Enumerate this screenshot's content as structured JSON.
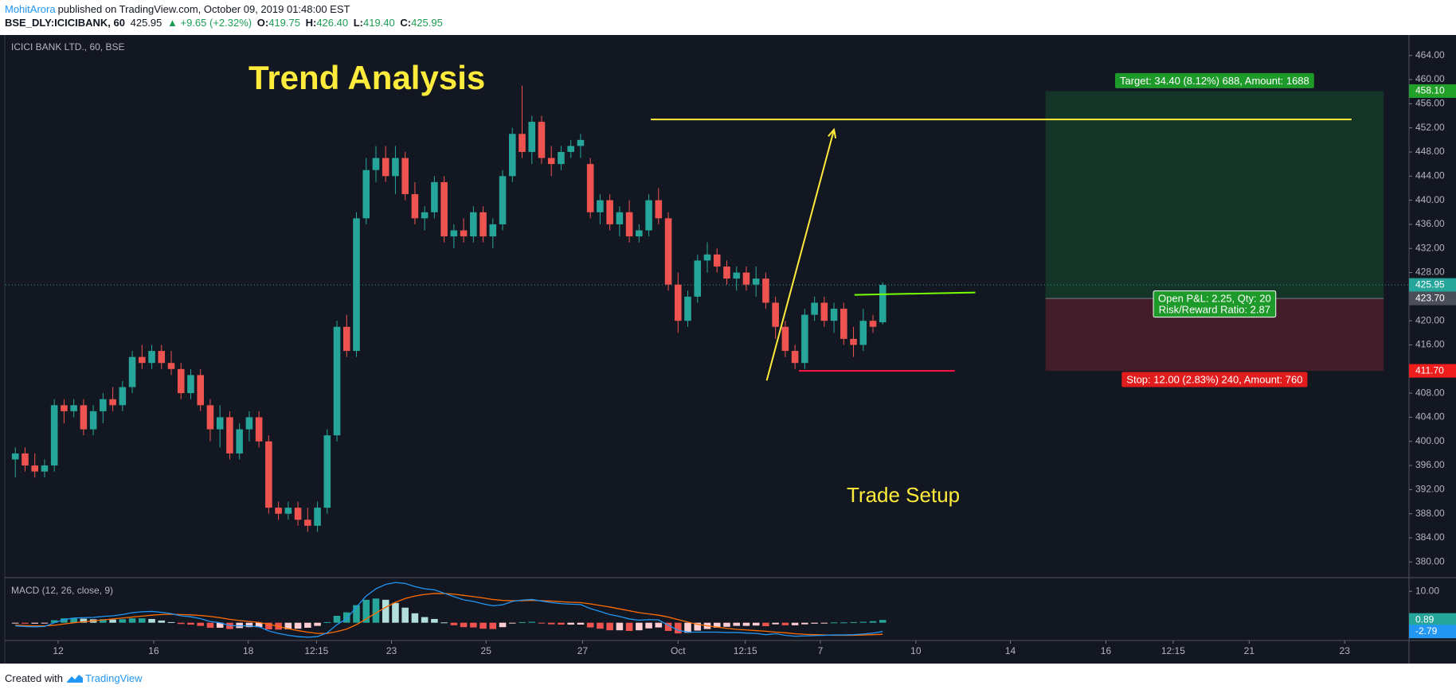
{
  "header": {
    "author": "MohitArora",
    "published": "published on TradingView.com, October 09, 2019 01:48:00 EST",
    "symbol": "BSE_DLY:ICICIBANK, 60",
    "last": "425.95",
    "arrow": "▲",
    "change": "+9.65 (+2.32%)",
    "o_label": "O:",
    "open": "419.75",
    "h_label": "H:",
    "high": "426.40",
    "l_label": "L:",
    "low": "419.40",
    "c_label": "C:",
    "close": "425.95"
  },
  "footer": {
    "created": "Created with",
    "brand": "TradingView"
  },
  "chart_data": [
    {
      "type": "candlestick",
      "title": "Trend Analysis",
      "subtitle": "ICICI BANK LTD., 60, BSE",
      "annotations": [
        "Trade Setup"
      ],
      "up_color": "#26a69a",
      "down_color": "#ef5350",
      "open": [
        397,
        398,
        396,
        395,
        396,
        406,
        405,
        406,
        402,
        405,
        407,
        406,
        409,
        414,
        413,
        415,
        413,
        412,
        408,
        411,
        406,
        402,
        404,
        398,
        402,
        404,
        400,
        389,
        388,
        389,
        387,
        386,
        389,
        401,
        419,
        415,
        437,
        445,
        447,
        444,
        447,
        441,
        437,
        438,
        443,
        434,
        435,
        434,
        438,
        434,
        436,
        444,
        451,
        448,
        453,
        447,
        446,
        448,
        449,
        446,
        438,
        440,
        436,
        438,
        434,
        435,
        440,
        437,
        426,
        420,
        424,
        430,
        431,
        429,
        427,
        428,
        426,
        427,
        423,
        419,
        415,
        413,
        421,
        423,
        420,
        422,
        417,
        416,
        420,
        419.75
      ],
      "high": [
        399,
        399,
        398,
        397,
        407,
        407,
        407,
        407,
        406,
        408,
        409,
        410,
        415,
        416,
        416,
        416,
        415,
        413,
        412,
        412,
        407,
        406,
        405,
        403,
        405,
        405,
        401,
        390,
        390,
        390,
        389,
        390,
        402,
        420,
        421,
        438,
        447,
        449,
        449,
        449,
        448,
        443,
        439,
        444,
        444,
        436,
        437,
        439,
        439,
        437,
        445,
        452,
        459,
        454,
        454,
        449,
        449,
        450,
        451,
        447,
        441,
        441,
        439,
        440,
        436,
        441,
        442,
        438,
        428,
        425,
        431,
        433,
        432,
        430,
        429,
        429,
        429,
        428,
        424,
        420,
        416,
        422,
        424,
        424,
        423,
        423,
        419,
        422,
        421,
        426.4
      ],
      "low": [
        394,
        395,
        394,
        394,
        395,
        403,
        404,
        401,
        401,
        403,
        405,
        405,
        408,
        412,
        412,
        412,
        411,
        407,
        407,
        405,
        400,
        399,
        397,
        397,
        400,
        399,
        388,
        387,
        387,
        386,
        385,
        385,
        388,
        400,
        414,
        414,
        436,
        443,
        443,
        441,
        440,
        436,
        435,
        437,
        433,
        432,
        433,
        433,
        433,
        432,
        435,
        443,
        447,
        446,
        446,
        444,
        445,
        447,
        447,
        437,
        436,
        435,
        434,
        433,
        433,
        434,
        436,
        425,
        418,
        419,
        423,
        428,
        428,
        426,
        425,
        425,
        424,
        422,
        417,
        414,
        412,
        412,
        420,
        419,
        418,
        416,
        414,
        415,
        418,
        419.4
      ],
      "close": [
        398,
        396,
        395,
        396,
        406,
        405,
        406,
        402,
        405,
        407,
        406,
        409,
        414,
        413,
        415,
        413,
        412,
        408,
        411,
        406,
        402,
        404,
        398,
        402,
        404,
        400,
        389,
        388,
        389,
        387,
        386,
        389,
        401,
        419,
        415,
        437,
        445,
        447,
        444,
        447,
        441,
        437,
        438,
        443,
        434,
        435,
        434,
        438,
        434,
        436,
        444,
        451,
        448,
        453,
        447,
        446,
        448,
        449,
        450,
        438,
        440,
        436,
        438,
        434,
        435,
        440,
        437,
        426,
        420,
        424,
        430,
        431,
        429,
        427,
        428,
        426,
        427,
        423,
        419,
        415,
        413,
        421,
        423,
        420,
        422,
        417,
        416,
        420,
        419,
        425.95
      ],
      "xlim": [
        -1,
        143
      ],
      "xticks": [
        {
          "value": 4.4,
          "label": "12"
        },
        {
          "value": 14.2,
          "label": "16"
        },
        {
          "value": 23.9,
          "label": "18"
        },
        {
          "value": 30.9,
          "label": "12:15"
        },
        {
          "value": 38.6,
          "label": "23"
        },
        {
          "value": 48.3,
          "label": "25"
        },
        {
          "value": 58.2,
          "label": "27"
        },
        {
          "value": 68,
          "label": "Oct"
        },
        {
          "value": 74.9,
          "label": "12:15"
        },
        {
          "value": 82.6,
          "label": "7"
        },
        {
          "value": 92.4,
          "label": "10"
        },
        {
          "value": 102.1,
          "label": "14"
        },
        {
          "value": 111.9,
          "label": "16"
        },
        {
          "value": 118.8,
          "label": "12:15"
        },
        {
          "value": 126.6,
          "label": "21"
        },
        {
          "value": 136.4,
          "label": "23"
        }
      ],
      "ylim": [
        377.4,
        467.4
      ],
      "yticks": [
        {
          "value": 380,
          "label": "380.00"
        },
        {
          "value": 384,
          "label": "384.00"
        },
        {
          "value": 388,
          "label": "388.00"
        },
        {
          "value": 392,
          "label": "392.00"
        },
        {
          "value": 396,
          "label": "396.00"
        },
        {
          "value": 400,
          "label": "400.00"
        },
        {
          "value": 404,
          "label": "404.00"
        },
        {
          "value": 408,
          "label": "408.00"
        },
        {
          "value": 412,
          "label": "412.00"
        },
        {
          "value": 416,
          "label": "416.00"
        },
        {
          "value": 420,
          "label": "420.00"
        },
        {
          "value": 424,
          "label": "424.00"
        },
        {
          "value": 428,
          "label": "428.00"
        },
        {
          "value": 432,
          "label": "432.00"
        },
        {
          "value": 436,
          "label": "436.00"
        },
        {
          "value": 440,
          "label": "440.00"
        },
        {
          "value": 444,
          "label": "444.00"
        },
        {
          "value": 448,
          "label": "448.00"
        },
        {
          "value": 452,
          "label": "452.00"
        },
        {
          "value": 456,
          "label": "456.00"
        },
        {
          "value": 460,
          "label": "460.00"
        },
        {
          "value": 464,
          "label": "464.00"
        }
      ],
      "drawings": [
        {
          "type": "line",
          "color": "#ffeb3b",
          "x": [
            65.2,
            137.1
          ],
          "y": [
            453.4,
            453.4
          ]
        },
        {
          "type": "arrow",
          "color": "#ffeb3b",
          "x": [
            77.1,
            84.0
          ],
          "y": [
            410.1,
            451.7
          ]
        },
        {
          "type": "line",
          "color": "#76ff03",
          "x": [
            86.1,
            98.5
          ],
          "y": [
            424.3,
            424.7
          ]
        },
        {
          "type": "line",
          "color": "#ff1744",
          "x": [
            80.4,
            96.4
          ],
          "y": [
            411.7,
            411.7
          ]
        }
      ],
      "position": {
        "x": [
          105.7,
          140.4
        ],
        "entry": 423.7,
        "target": 458.1,
        "stop": 411.7,
        "target_label": "Target: 34.40 (8.12%) 688, Amount: 1688",
        "pnl_label": "Open P&L: 2.25, Qty: 20",
        "rr_label": "Risk/Reward Ratio: 2.87",
        "stop_label": "Stop: 12.00 (2.83%) 240, Amount: 760"
      },
      "price_labels": [
        {
          "value": 458.1,
          "label": "458.10",
          "color": "#22a12a"
        },
        {
          "value": 425.95,
          "color": "#26a69a",
          "dotted": true
        },
        {
          "value": 423.7,
          "label": "423.70",
          "color": "#4a4e59"
        },
        {
          "value": 411.7,
          "label": "411.70",
          "color": "#f01d1d"
        }
      ]
    },
    {
      "type": "macd",
      "title": "MACD (12, 26, close, 9)",
      "histogram": {
        "colors": [
          "#26a69a",
          "#b2dfdb",
          "#ffcdd2",
          "#ef5350"
        ],
        "values": [
          -0.2,
          -0.3,
          -0.3,
          -0.2,
          0.8,
          1.4,
          1.5,
          1.3,
          1.1,
          1.1,
          1.0,
          1.1,
          1.4,
          1.4,
          1.2,
          0.7,
          0.2,
          -0.4,
          -0.6,
          -1.0,
          -1.6,
          -1.6,
          -2.0,
          -1.7,
          -1.4,
          -1.4,
          -2.1,
          -2.2,
          -2.1,
          -1.9,
          -1.6,
          -1.0,
          0.2,
          2.2,
          3.3,
          5.6,
          7.3,
          7.7,
          7.3,
          6.3,
          4.8,
          3.0,
          1.8,
          1.2,
          0.1,
          -0.8,
          -1.4,
          -1.5,
          -1.9,
          -2.0,
          -1.4,
          -0.2,
          0.2,
          0.3,
          -0.1,
          -0.5,
          -0.6,
          -0.6,
          -0.6,
          -1.5,
          -1.9,
          -2.4,
          -2.4,
          -2.6,
          -2.4,
          -1.8,
          -1.5,
          -2.6,
          -3.4,
          -3.2,
          -2.5,
          -2.0,
          -1.6,
          -1.3,
          -1.0,
          -1.0,
          -0.9,
          -1.1,
          -0.5,
          -0.8,
          -0.8,
          -0.5,
          -0.3,
          -0.1,
          0.1,
          0.1,
          0.2,
          0.3,
          0.5,
          0.89
        ]
      },
      "macd": {
        "color": "#2196f3",
        "values": [
          -1,
          -1.2,
          -1.3,
          -1.2,
          0,
          1,
          1.5,
          1.6,
          1.7,
          2,
          2.2,
          2.6,
          3.2,
          3.5,
          3.6,
          3.3,
          2.9,
          2.2,
          1.9,
          1.3,
          0.4,
          0,
          -0.9,
          -1,
          -1,
          -1.3,
          -2.6,
          -3.4,
          -4,
          -4.4,
          -4.6,
          -4.4,
          -3.2,
          -0.6,
          1.3,
          5,
          8.5,
          10.8,
          12.2,
          12.8,
          12.5,
          11.5,
          10.8,
          10.5,
          9.4,
          8.3,
          7.3,
          6.8,
          6,
          5.4,
          5.7,
          6.8,
          7.2,
          7.4,
          6.9,
          6.4,
          6.1,
          5.9,
          5.8,
          4.5,
          3.6,
          2.6,
          2,
          1.2,
          0.8,
          1,
          0.9,
          -0.8,
          -2.4,
          -3,
          -3,
          -3,
          -3,
          -3.1,
          -3.1,
          -3.3,
          -3.4,
          -3.8,
          -3.5,
          -4,
          -4.3,
          -4.2,
          -4.1,
          -4,
          -3.9,
          -3.9,
          -3.8,
          -3.6,
          -3.3,
          -2.79
        ]
      },
      "signal": {
        "color": "#ff6d00",
        "values": [
          -0.8,
          -0.9,
          -1,
          -1,
          -0.8,
          -0.4,
          0,
          0.3,
          0.6,
          0.9,
          1.2,
          1.5,
          1.8,
          2.1,
          2.4,
          2.6,
          2.7,
          2.6,
          2.5,
          2.3,
          2,
          1.6,
          1.1,
          0.7,
          0.4,
          0.1,
          -0.5,
          -1.2,
          -1.9,
          -2.5,
          -3,
          -3.4,
          -3.4,
          -2.8,
          -2,
          -0.6,
          1.2,
          3.1,
          4.9,
          6.5,
          7.7,
          8.5,
          9,
          9.3,
          9.3,
          9.1,
          8.7,
          8.3,
          7.9,
          7.4,
          7.1,
          7,
          7,
          7.1,
          7,
          6.9,
          6.7,
          6.5,
          6.4,
          6,
          5.5,
          5,
          4.4,
          3.8,
          3.2,
          2.8,
          2.4,
          1.8,
          1,
          0.2,
          -0.5,
          -1,
          -1.4,
          -1.8,
          -2.1,
          -2.3,
          -2.5,
          -2.7,
          -3,
          -3.2,
          -3.5,
          -3.7,
          -3.8,
          -3.9,
          -4,
          -4,
          -4,
          -3.9,
          -3.8,
          -3.68
        ]
      },
      "ylim": [
        -5.4,
        14.1
      ],
      "yticks": [
        {
          "value": 10,
          "label": "10.00"
        }
      ],
      "price_labels": [
        {
          "value": 0.89,
          "color": "#26a69a"
        },
        {
          "value": -2.79,
          "color": "#2196f3"
        }
      ]
    }
  ]
}
